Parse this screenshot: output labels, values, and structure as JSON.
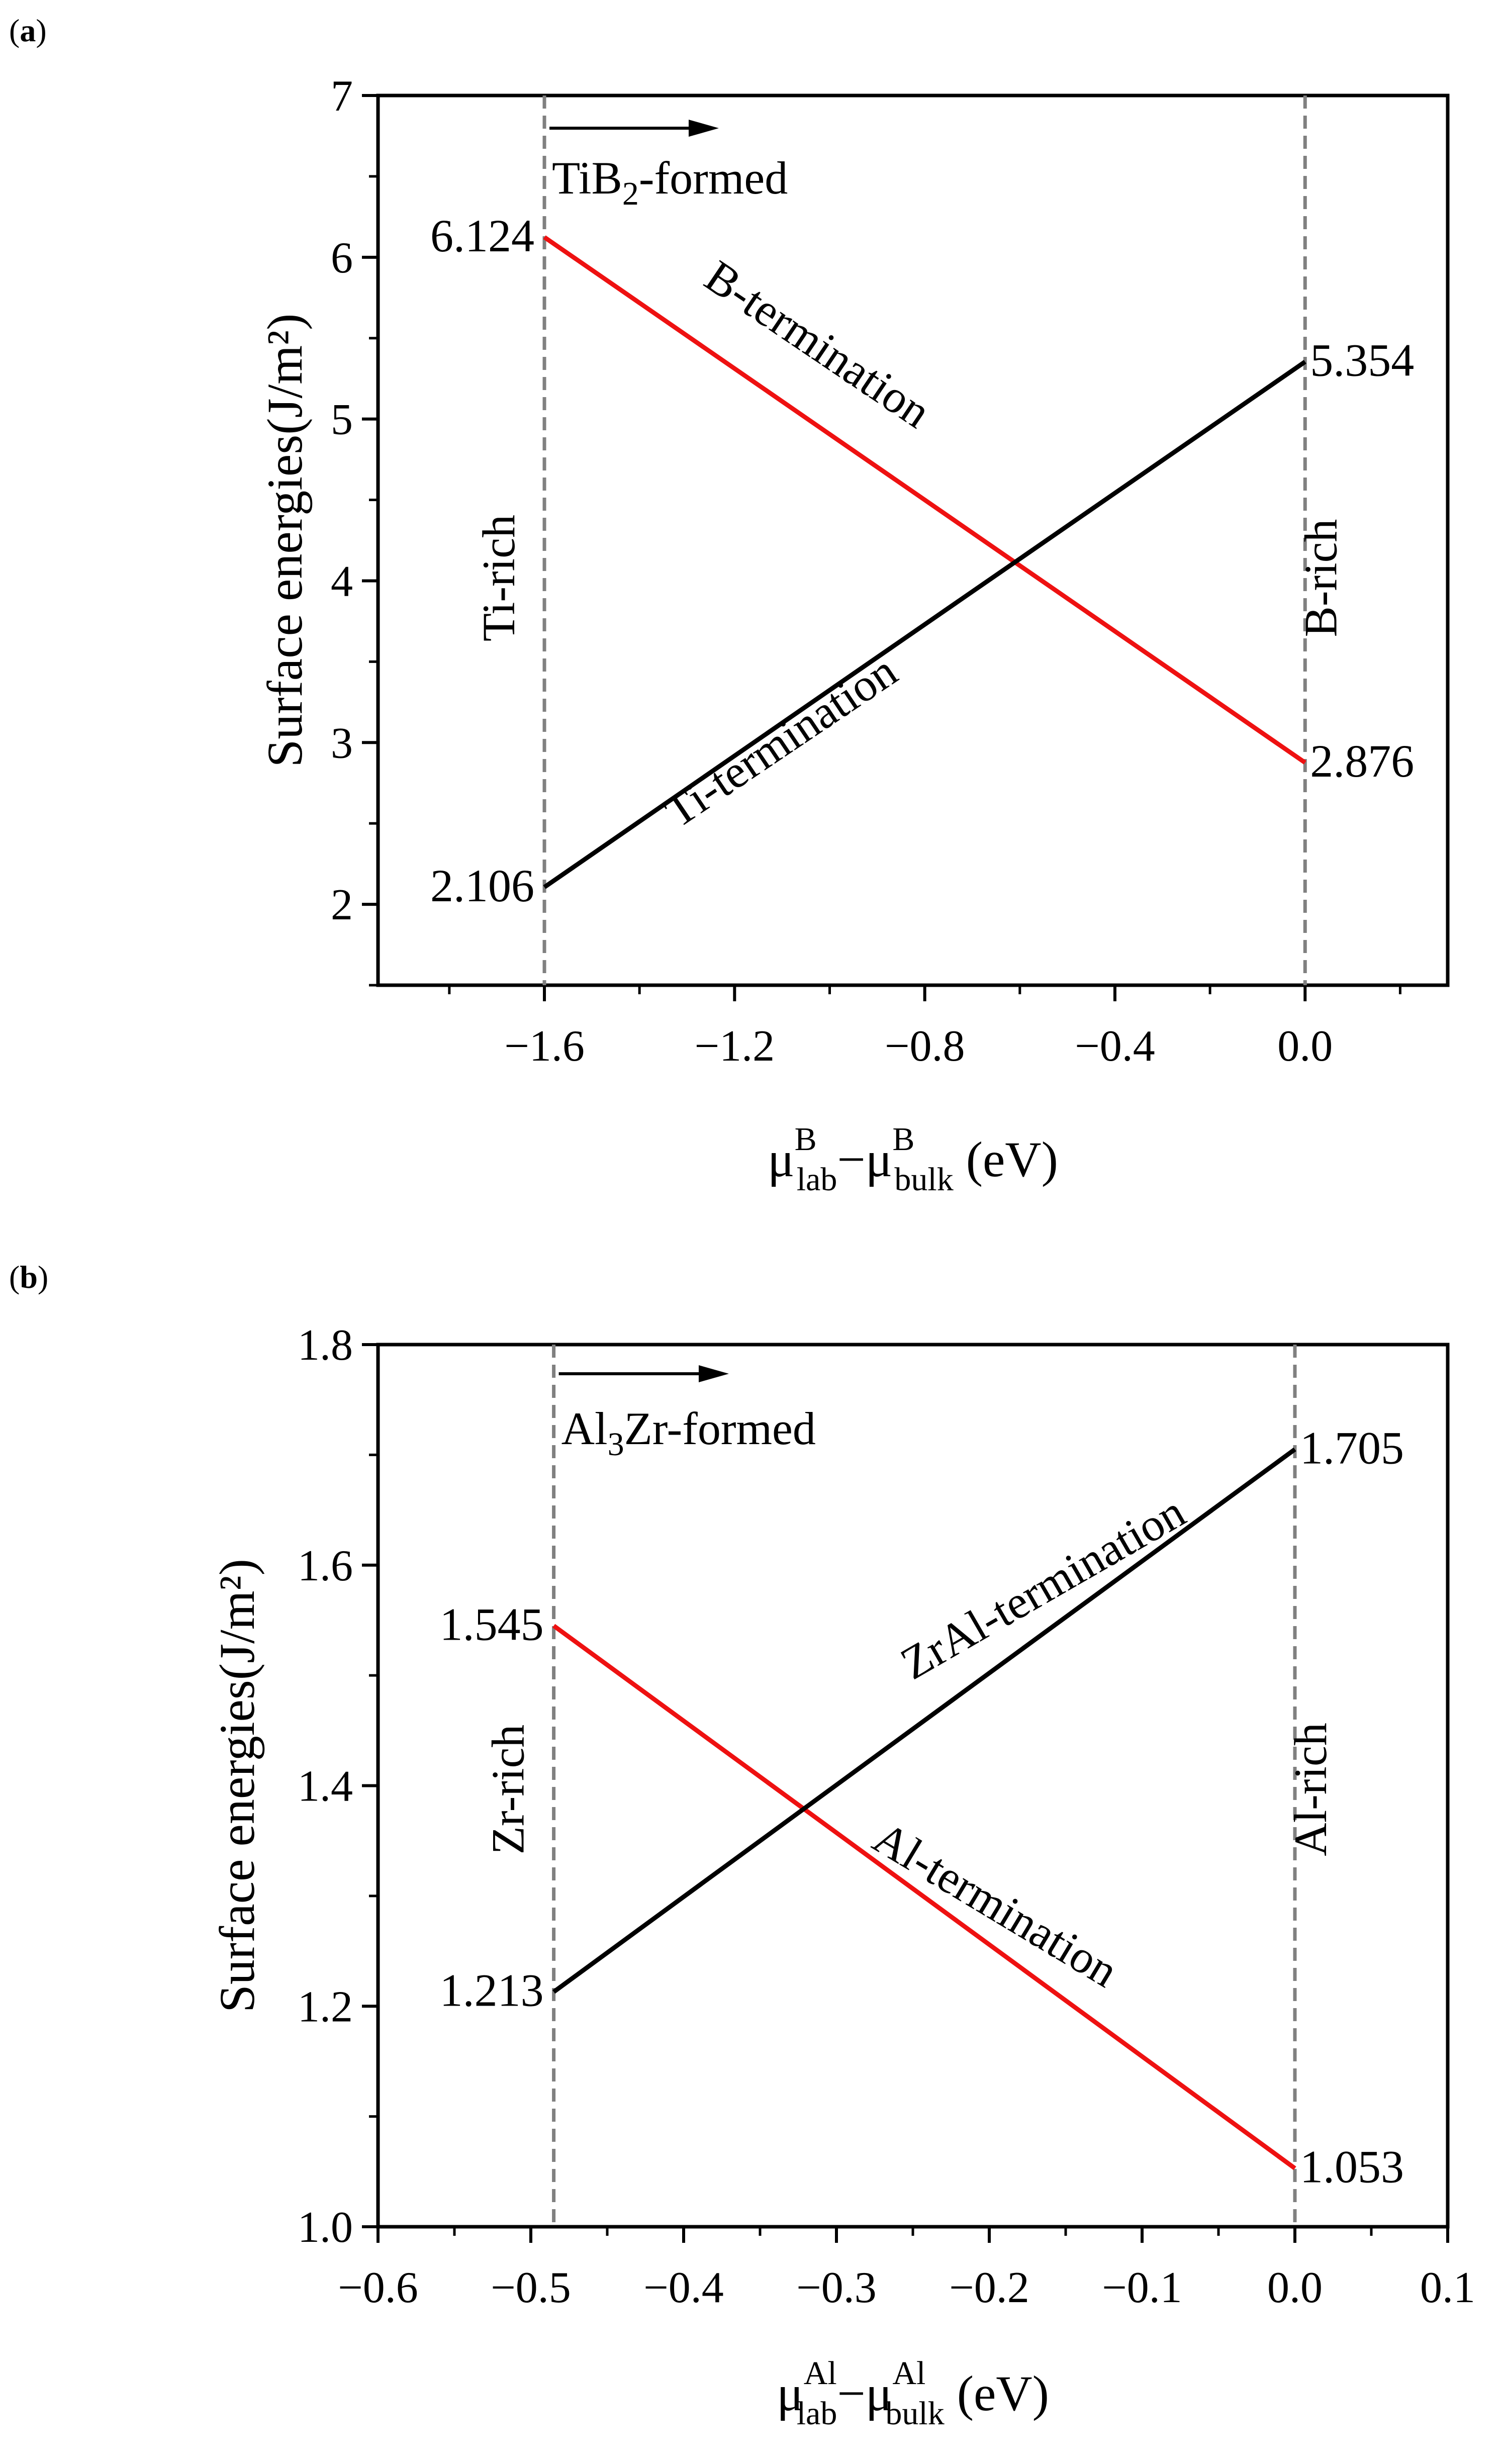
{
  "colors": {
    "red": "#ee1111",
    "black": "#000000",
    "dash": "#808080"
  },
  "chart_data": [
    {
      "type": "line",
      "panel_label": "(a)",
      "ylabel": "Surface energies(J/m²)",
      "xlabel": {
        "mu": "μ",
        "sup": "B",
        "sub1": "lab",
        "minus": "−",
        "sub2": "bulk",
        "unit": " (eV)"
      },
      "xlim": [
        -1.95,
        0.3
      ],
      "ylim": [
        1.5,
        7
      ],
      "xticks": [
        -1.6,
        -1.2,
        -0.8,
        -0.4,
        0.0
      ],
      "xtick_labels": [
        "−1.6",
        "−1.2",
        "−0.8",
        "−0.4",
        "0.0"
      ],
      "xminor": [
        -1.8,
        -1.4,
        -1.0,
        -0.6,
        -0.2,
        0.2
      ],
      "yticks": [
        2,
        3,
        4,
        5,
        6,
        7
      ],
      "ytick_labels": [
        "2",
        "3",
        "4",
        "5",
        "6",
        "7"
      ],
      "yminor": [
        1.5,
        2.5,
        3.5,
        4.5,
        5.5,
        6.5
      ],
      "vlines": [
        {
          "x": -1.6,
          "label": "Ti-rich"
        },
        {
          "x": 0.0,
          "label": "B-rich"
        }
      ],
      "formed": {
        "main": "TiB",
        "sub": "2",
        "rest": "-formed"
      },
      "series": [
        {
          "name": "B-termination",
          "color": "#ee1111",
          "x": [
            -1.6,
            0.0
          ],
          "y": [
            6.124,
            2.876
          ],
          "labels": [
            "6.124",
            "2.876"
          ]
        },
        {
          "name": "Ti-termination",
          "color": "#000000",
          "x": [
            -1.6,
            0.0
          ],
          "y": [
            2.106,
            5.354
          ],
          "labels": [
            "2.106",
            "5.354"
          ]
        }
      ]
    },
    {
      "type": "line",
      "panel_label": "(b)",
      "ylabel": "Surface energies(J/m²)",
      "xlabel": {
        "mu": "μ",
        "sup": "Al",
        "sub1": "lab",
        "minus": "−",
        "sub2": "bulk",
        "unit": " (eV)"
      },
      "xlim": [
        -0.6,
        0.1
      ],
      "ylim": [
        1.0,
        1.8
      ],
      "xticks": [
        -0.6,
        -0.5,
        -0.4,
        -0.3,
        -0.2,
        -0.1,
        0.0,
        0.1
      ],
      "xtick_labels": [
        "−0.6",
        "−0.5",
        "−0.4",
        "−0.3",
        "−0.2",
        "−0.1",
        "0.0",
        "0.1"
      ],
      "xminor": [
        -0.55,
        -0.45,
        -0.35,
        -0.25,
        -0.15,
        -0.05,
        0.05
      ],
      "yticks": [
        1.0,
        1.2,
        1.4,
        1.6,
        1.8
      ],
      "ytick_labels": [
        "1.0",
        "1.2",
        "1.4",
        "1.6",
        "1.8"
      ],
      "yminor": [
        1.1,
        1.3,
        1.5,
        1.7
      ],
      "vlines": [
        {
          "x": -0.485,
          "label": "Zr-rich"
        },
        {
          "x": 0.0,
          "label": "Al-rich"
        }
      ],
      "formed": {
        "main": "Al",
        "sub": "3",
        "rest": "Zr-formed"
      },
      "series": [
        {
          "name": "Al-termination",
          "color": "#ee1111",
          "x": [
            -0.485,
            0.0
          ],
          "y": [
            1.545,
            1.053
          ],
          "labels": [
            "1.545",
            "1.053"
          ]
        },
        {
          "name": "ZrAl-termination",
          "color": "#000000",
          "x": [
            -0.485,
            0.0
          ],
          "y": [
            1.213,
            1.705
          ],
          "labels": [
            "1.213",
            "1.705"
          ]
        }
      ]
    }
  ]
}
